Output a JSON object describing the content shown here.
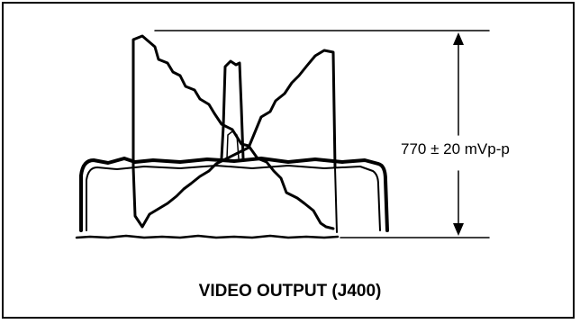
{
  "figure": {
    "amplitude_label": "770 ± 20 mVp-p",
    "caption": "VIDEO OUTPUT (J400)"
  }
}
